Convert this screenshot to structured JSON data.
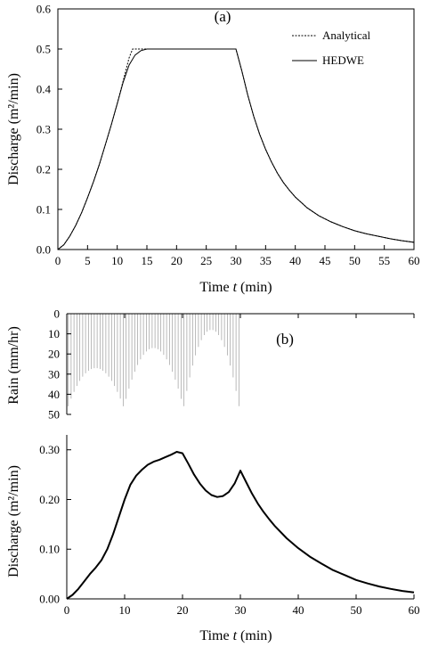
{
  "chart_data": [
    {
      "type": "line",
      "panel_label": "(a)",
      "xlabel_prefix": "Time ",
      "xlabel_var": "t",
      "xlabel_unit": " (min)",
      "ylabel": "Discharge (m²/min)",
      "xlim": [
        0,
        60
      ],
      "ylim": [
        0,
        0.6
      ],
      "xticks": [
        0,
        5,
        10,
        15,
        20,
        25,
        30,
        35,
        40,
        45,
        50,
        55,
        60
      ],
      "yticks": [
        "0.0",
        "0.1",
        "0.2",
        "0.3",
        "0.4",
        "0.5",
        "0.6"
      ],
      "grid": false,
      "legend_position": "top-right",
      "series": [
        {
          "name": "Analytical",
          "style": "dotted",
          "x": [
            0,
            1,
            2,
            3,
            4,
            5,
            6,
            7,
            8,
            9,
            10,
            11,
            12,
            12.6,
            13,
            15,
            20,
            25,
            30,
            31,
            32,
            33,
            34,
            35,
            36,
            37,
            38,
            39,
            40,
            42,
            44,
            46,
            48,
            50,
            52,
            54,
            56,
            58,
            60
          ],
          "y": [
            0,
            0.012,
            0.033,
            0.06,
            0.092,
            0.129,
            0.169,
            0.213,
            0.261,
            0.311,
            0.364,
            0.42,
            0.478,
            0.5,
            0.5,
            0.5,
            0.5,
            0.5,
            0.5,
            0.445,
            0.385,
            0.332,
            0.287,
            0.25,
            0.218,
            0.19,
            0.167,
            0.148,
            0.131,
            0.104,
            0.084,
            0.069,
            0.057,
            0.047,
            0.039,
            0.033,
            0.027,
            0.022,
            0.018
          ]
        },
        {
          "name": "HEDWE",
          "style": "solid",
          "x": [
            0,
            1,
            2,
            3,
            4,
            5,
            6,
            7,
            8,
            9,
            10,
            11,
            12,
            13,
            14,
            15,
            16,
            20,
            25,
            30,
            31,
            32,
            33,
            34,
            35,
            36,
            37,
            38,
            39,
            40,
            42,
            44,
            46,
            48,
            50,
            52,
            54,
            56,
            58,
            60
          ],
          "y": [
            0,
            0.012,
            0.033,
            0.06,
            0.092,
            0.129,
            0.169,
            0.213,
            0.261,
            0.311,
            0.364,
            0.417,
            0.46,
            0.485,
            0.496,
            0.5,
            0.5,
            0.5,
            0.5,
            0.5,
            0.445,
            0.385,
            0.332,
            0.287,
            0.25,
            0.218,
            0.19,
            0.167,
            0.148,
            0.131,
            0.104,
            0.084,
            0.069,
            0.057,
            0.047,
            0.039,
            0.033,
            0.027,
            0.022,
            0.018
          ]
        }
      ]
    },
    {
      "type": "bar",
      "panel_label": "(b)",
      "ylabel": "Rain (mm/hr)",
      "xlim": [
        0,
        60
      ],
      "ylim": [
        50,
        0
      ],
      "yticks": [
        "0",
        "10",
        "20",
        "30",
        "40",
        "50"
      ],
      "xticks": [
        0,
        10,
        20,
        30,
        40,
        50,
        60
      ],
      "grid": false,
      "bar_spacing": 0.5,
      "rain_segments": [
        {
          "t_start": 0,
          "t_end": 10,
          "low": 27,
          "edge": 48
        },
        {
          "t_start": 10,
          "t_end": 20,
          "low": 17,
          "edge": 45
        },
        {
          "t_start": 20,
          "t_end": 30,
          "low": 8,
          "edge": 50
        }
      ]
    },
    {
      "type": "line",
      "xlabel_prefix": "Time ",
      "xlabel_var": "t",
      "xlabel_unit": " (min)",
      "ylabel": "Discharge (m²/min)",
      "xlim": [
        0,
        60
      ],
      "ylim": [
        0,
        0.33
      ],
      "xticks": [
        0,
        10,
        20,
        30,
        40,
        50,
        60
      ],
      "yticks": [
        "0.00",
        "0.10",
        "0.20",
        "0.30"
      ],
      "grid": false,
      "series": [
        {
          "style": "solid-bold",
          "x": [
            0,
            1,
            2,
            3,
            4,
            5,
            6,
            7,
            8,
            9,
            10,
            11,
            12,
            13,
            14,
            15,
            16,
            17,
            18,
            19,
            20,
            21,
            22,
            23,
            24,
            25,
            26,
            27,
            28,
            29,
            30,
            31,
            32,
            33,
            34,
            35,
            36,
            38,
            40,
            42,
            44,
            46,
            48,
            50,
            52,
            54,
            56,
            58,
            60
          ],
          "y": [
            0,
            0.008,
            0.02,
            0.035,
            0.05,
            0.063,
            0.078,
            0.1,
            0.13,
            0.165,
            0.2,
            0.23,
            0.248,
            0.26,
            0.27,
            0.276,
            0.28,
            0.285,
            0.29,
            0.296,
            0.293,
            0.272,
            0.25,
            0.232,
            0.218,
            0.209,
            0.205,
            0.207,
            0.215,
            0.232,
            0.258,
            0.235,
            0.212,
            0.192,
            0.175,
            0.16,
            0.146,
            0.122,
            0.102,
            0.085,
            0.071,
            0.058,
            0.048,
            0.038,
            0.031,
            0.025,
            0.02,
            0.016,
            0.013
          ]
        }
      ]
    }
  ]
}
